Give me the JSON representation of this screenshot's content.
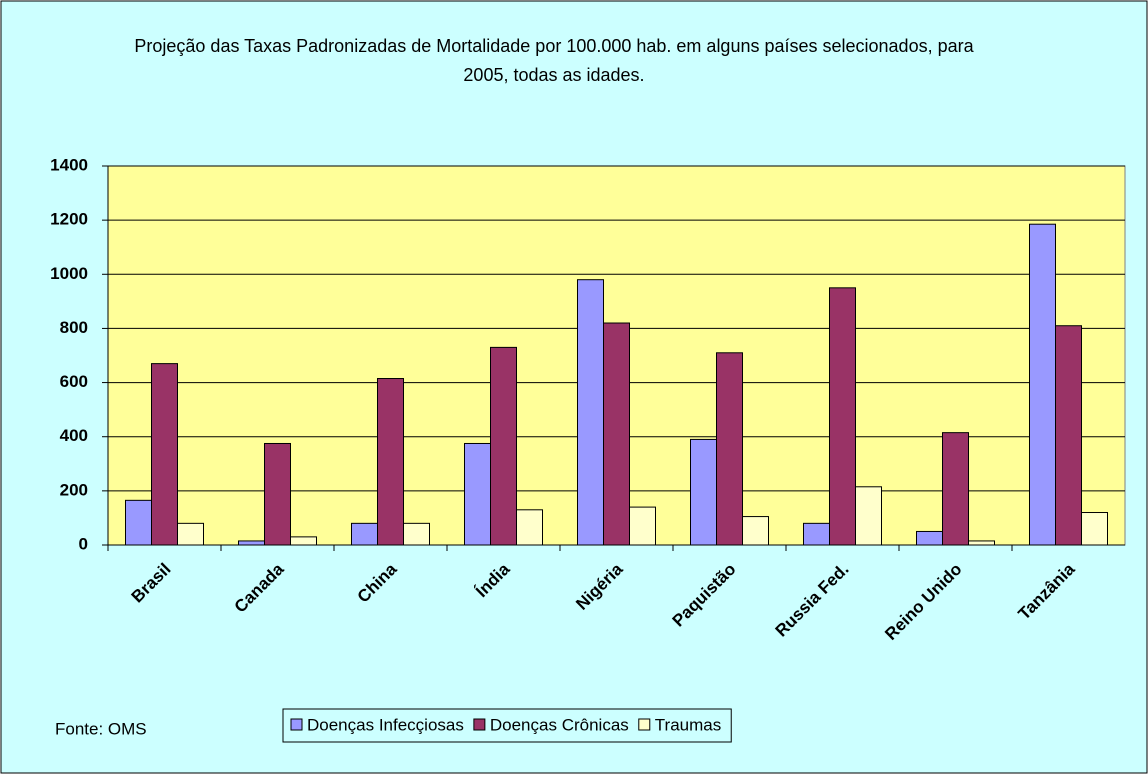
{
  "chart_data": {
    "type": "bar",
    "title": "Projeção das Taxas Padronizadas de Mortalidade por 100.000 hab.  em alguns países selecionados, para 2005, todas as idades.",
    "categories": [
      "Brasil",
      "Canada",
      "China",
      "Índia",
      "Nigéria",
      "Paquistão",
      "Russia Fed.",
      "Reino Unido",
      "Tanzânia"
    ],
    "series": [
      {
        "name": "Doenças Infecçiosas",
        "color": "#9999ff",
        "values": [
          165,
          15,
          80,
          375,
          980,
          390,
          80,
          50,
          1185
        ]
      },
      {
        "name": "Doenças Crônicas",
        "color": "#993366",
        "values": [
          670,
          375,
          615,
          730,
          820,
          710,
          950,
          415,
          810
        ]
      },
      {
        "name": "Traumas",
        "color": "#ffffcc",
        "values": [
          80,
          30,
          80,
          130,
          140,
          105,
          215,
          15,
          120
        ]
      }
    ],
    "ylim": [
      0,
      1400
    ],
    "yticks": [
      0,
      200,
      400,
      600,
      800,
      1000,
      1200,
      1400
    ],
    "grid": true,
    "source": "Fonte: OMS"
  }
}
